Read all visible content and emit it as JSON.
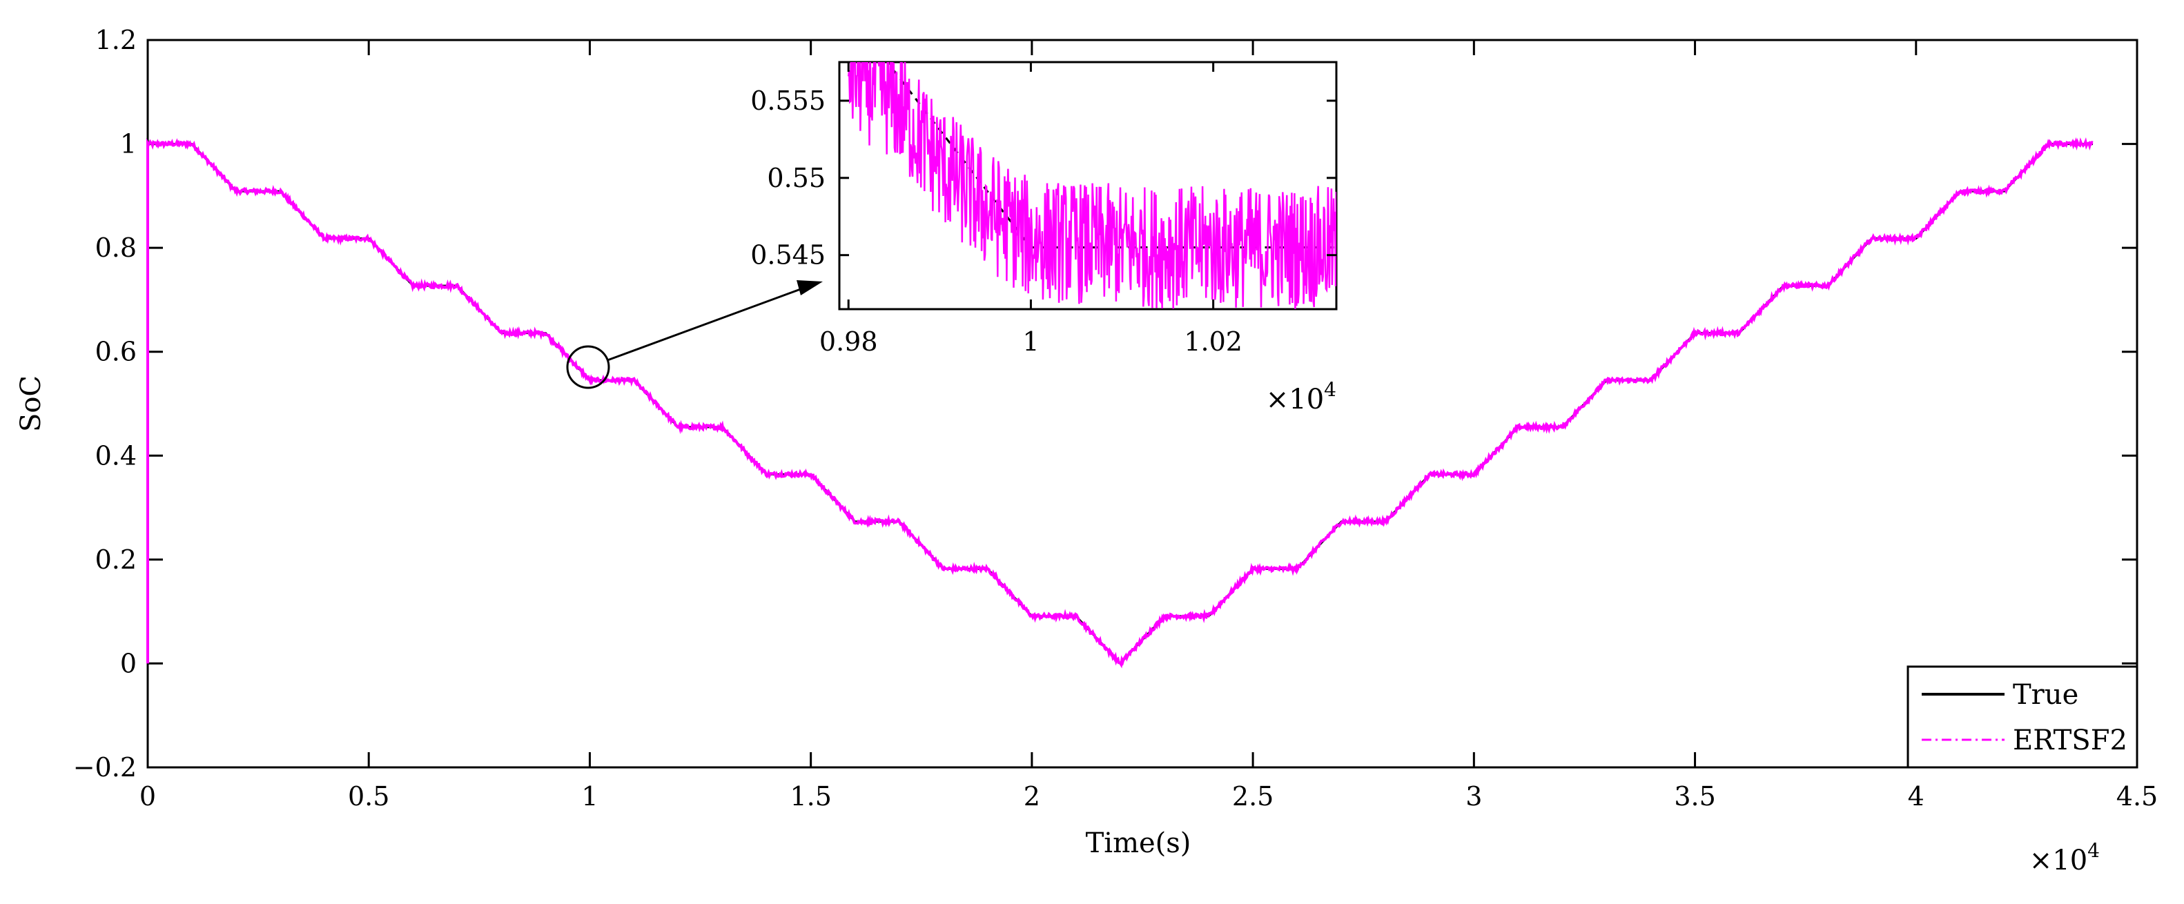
{
  "chart_data": [
    {
      "type": "line",
      "xlabel": "Time(s)",
      "ylabel": "SoC",
      "x_multiplier": {
        "base": "×10",
        "exponent": "4"
      },
      "xlim": [
        0,
        4.5
      ],
      "ylim": [
        -0.2,
        1.2
      ],
      "x_ticks": [
        "0",
        "0.5",
        "1",
        "1.5",
        "2",
        "2.5",
        "3",
        "3.5",
        "4",
        "4.5"
      ],
      "x_tick_values": [
        0,
        0.5,
        1,
        1.5,
        2,
        2.5,
        3,
        3.5,
        4,
        4.5
      ],
      "y_ticks": [
        "-0.2",
        "0",
        "0.2",
        "0.4",
        "0.6",
        "0.8",
        "1",
        "1.2"
      ],
      "y_tick_values": [
        -0.2,
        0,
        0.2,
        0.4,
        0.6,
        0.8,
        1,
        1.2
      ],
      "grid": false,
      "legend": "bottom-right",
      "series": [
        {
          "name": "True",
          "color": "#000000",
          "style": "solid",
          "x": [
            0,
            0.1,
            0.2,
            0.3,
            0.4,
            0.5,
            0.6,
            0.7,
            0.8,
            0.9,
            1.0,
            1.1,
            1.2,
            1.3,
            1.4,
            1.5,
            1.6,
            1.7,
            1.8,
            1.9,
            2.0,
            2.1,
            2.2,
            2.3,
            2.4,
            2.5,
            2.6,
            2.7,
            2.8,
            2.9,
            3.0,
            3.1,
            3.2,
            3.3,
            3.4,
            3.5,
            3.6,
            3.7,
            3.8,
            3.9,
            4.0,
            4.1,
            4.2,
            4.3,
            4.4
          ],
          "y": [
            1.0,
            1.0,
            0.909,
            0.909,
            0.818,
            0.818,
            0.727,
            0.727,
            0.636,
            0.636,
            0.545,
            0.545,
            0.455,
            0.455,
            0.364,
            0.364,
            0.273,
            0.273,
            0.182,
            0.182,
            0.091,
            0.091,
            0.0,
            0.091,
            0.091,
            0.182,
            0.182,
            0.273,
            0.273,
            0.364,
            0.364,
            0.455,
            0.455,
            0.545,
            0.545,
            0.636,
            0.636,
            0.727,
            0.727,
            0.818,
            0.818,
            0.909,
            0.909,
            1.0,
            1.0
          ]
        },
        {
          "name": "ERTSF2",
          "color": "#ff00ff",
          "style": "dashdot",
          "x": [
            0,
            0.1,
            0.2,
            0.3,
            0.4,
            0.5,
            0.6,
            0.7,
            0.8,
            0.9,
            1.0,
            1.1,
            1.2,
            1.3,
            1.4,
            1.5,
            1.6,
            1.7,
            1.8,
            1.9,
            2.0,
            2.1,
            2.2,
            2.3,
            2.4,
            2.5,
            2.6,
            2.7,
            2.8,
            2.9,
            3.0,
            3.1,
            3.2,
            3.3,
            3.4,
            3.5,
            3.6,
            3.7,
            3.8,
            3.9,
            4.0,
            4.1,
            4.2,
            4.3,
            4.4
          ],
          "y": [
            1.0,
            1.0,
            0.909,
            0.909,
            0.818,
            0.818,
            0.727,
            0.727,
            0.636,
            0.636,
            0.545,
            0.545,
            0.455,
            0.455,
            0.364,
            0.364,
            0.273,
            0.273,
            0.182,
            0.182,
            0.091,
            0.091,
            0.0,
            0.091,
            0.091,
            0.182,
            0.182,
            0.273,
            0.273,
            0.364,
            0.364,
            0.455,
            0.455,
            0.545,
            0.545,
            0.636,
            0.636,
            0.727,
            0.727,
            0.818,
            0.818,
            0.909,
            0.909,
            1.0,
            1.0
          ],
          "start_spike": {
            "x": 0,
            "y_from": 0,
            "y_to": 1.0
          },
          "noise_amplitude": 0.004
        }
      ]
    },
    {
      "type": "line",
      "inset": true,
      "zoom_of": "circled region near x = 1.0",
      "x_multiplier": {
        "base": "×10",
        "exponent": "4"
      },
      "xlim": [
        0.979,
        1.0335
      ],
      "ylim": [
        0.5415,
        0.5575
      ],
      "x_ticks": [
        "0.98",
        "1",
        "1.02"
      ],
      "x_tick_values": [
        0.98,
        1.0,
        1.02
      ],
      "y_ticks": [
        "0.545",
        "0.55",
        "0.555"
      ],
      "y_tick_values": [
        0.545,
        0.55,
        0.555
      ],
      "grid": false,
      "series": [
        {
          "name": "True",
          "color": "#000000",
          "style": "dashed",
          "x": [
            0.979,
            1.0,
            1.0335
          ],
          "y": [
            0.5615,
            0.5455,
            0.5455
          ]
        },
        {
          "name": "ERTSF2",
          "color": "#ff00ff",
          "style": "dashdot",
          "x": [
            0.98,
            0.985,
            0.99,
            0.995,
            1.0,
            1.005,
            1.01,
            1.015,
            1.02,
            1.025,
            1.03,
            1.0335
          ],
          "y": [
            0.557,
            0.555,
            0.551,
            0.548,
            0.546,
            0.5458,
            0.5456,
            0.5455,
            0.5455,
            0.5455,
            0.5455,
            0.5455
          ],
          "noise_amplitude": 0.004
        }
      ]
    }
  ]
}
